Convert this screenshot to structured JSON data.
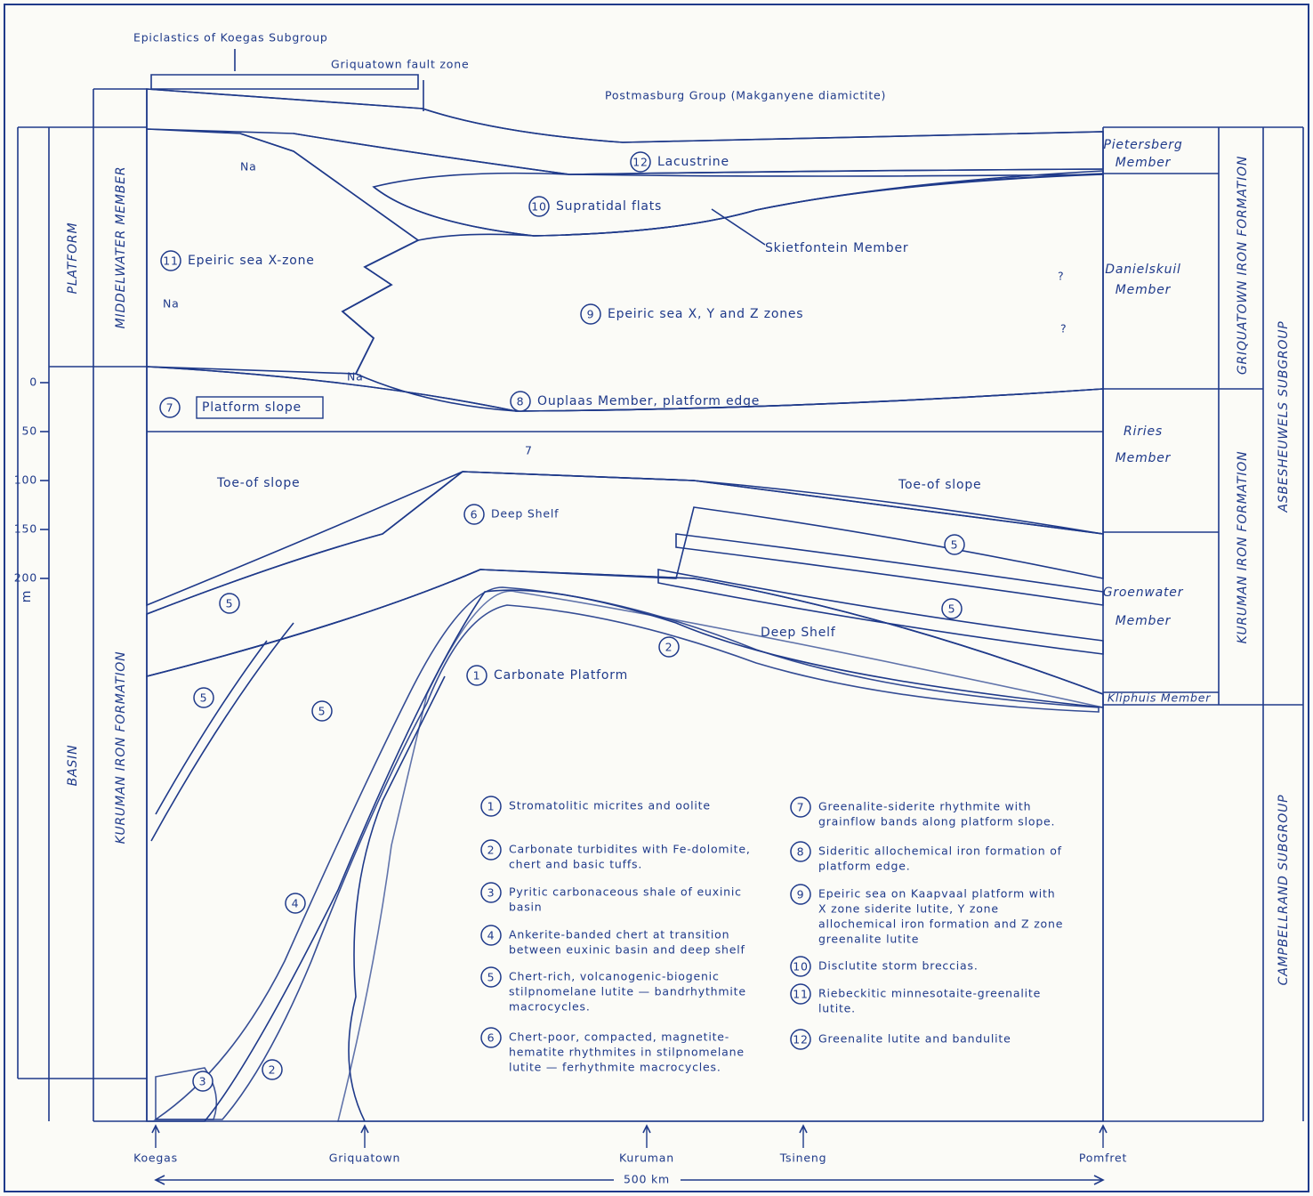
{
  "annotations": {
    "epiclastics": "Epiclastics of Koegas Subgroup",
    "fault_zone": "Griquatown fault zone",
    "postmasburg": "Postmasburg Group (Makganyene diamictite)"
  },
  "left_column": {
    "platform": "PLATFORM",
    "basin": "BASIN",
    "upper_unit": "MIDDELWATER MEMBER",
    "lower_unit": "KURUMAN IRON FORMATION"
  },
  "scale": {
    "ticks": [
      0,
      50,
      100,
      150,
      200
    ],
    "unit": "m"
  },
  "right_column": {
    "members": [
      [
        "Pietersberg",
        "Member"
      ],
      [
        "Danielskuil",
        "Member"
      ],
      [
        "Riries",
        "Member"
      ],
      [
        "Groenwater",
        "Member"
      ],
      [
        "Kliphuis Member"
      ]
    ],
    "formations": [
      "GRIQUATOWN IRON FORMATION",
      "KURUMAN IRON FORMATION"
    ],
    "subgroups": [
      "ASBESHEUWELS SUBGROUP",
      "CAMPBELLRAND SUBGROUP"
    ]
  },
  "zones": [
    {
      "number": "12",
      "label": "Lacustrine"
    },
    {
      "number": "10",
      "label": "Supratidal flats"
    },
    {
      "number": "11",
      "label": "Epeiric sea X-zone"
    },
    {
      "number": "9",
      "label": "Epeiric sea X, Y and Z zones"
    },
    {
      "number": "8",
      "label": "Ouplaas Member, platform edge"
    },
    {
      "number": "7",
      "label": "Platform slope"
    },
    {
      "number": "6",
      "label": "Deep Shelf"
    },
    {
      "number": "1",
      "label": "Carbonate Platform"
    },
    {
      "number": "5"
    },
    {
      "number": "5"
    },
    {
      "number": "5"
    },
    {
      "number": "5"
    },
    {
      "number": "5"
    },
    {
      "number": "2"
    },
    {
      "number": "4"
    },
    {
      "number": "3"
    },
    {
      "number": "2"
    }
  ],
  "labels": [
    "Skietfontein Member",
    "Toe-of slope",
    "Toe-of slope",
    "Deep Shelf",
    "Na",
    "Na",
    "Na",
    "?",
    "?",
    "7"
  ],
  "legend": [
    {
      "number": "1",
      "lines": [
        "Stromatolitic micrites and oolite"
      ]
    },
    {
      "number": "2",
      "lines": [
        "Carbonate turbidites with Fe-dolomite,",
        "chert and basic tuffs."
      ]
    },
    {
      "number": "3",
      "lines": [
        "Pyritic carbonaceous shale of euxinic",
        "basin"
      ]
    },
    {
      "number": "4",
      "lines": [
        "Ankerite-banded chert at transition",
        "between euxinic basin and deep shelf"
      ]
    },
    {
      "number": "5",
      "lines": [
        "Chert-rich, volcanogenic-biogenic",
        "stilpnomelane lutite — bandrhythmite",
        "macrocycles."
      ]
    },
    {
      "number": "6",
      "lines": [
        "Chert-poor, compacted, magnetite-",
        "hematite rhythmites in stilpnomelane",
        "lutite — ferhythmite macrocycles."
      ]
    },
    {
      "number": "7",
      "lines": [
        "Greenalite-siderite rhythmite with",
        "grainflow bands along platform slope."
      ]
    },
    {
      "number": "8",
      "lines": [
        "Sideritic allochemical iron formation of",
        "platform edge."
      ]
    },
    {
      "number": "9",
      "lines": [
        "Epeiric sea on Kaapvaal platform with",
        "X zone siderite lutite, Y zone",
        "allochemical iron formation and Z zone",
        "greenalite lutite"
      ]
    },
    {
      "number": "10",
      "lines": [
        "Disclutite storm breccias."
      ]
    },
    {
      "number": "11",
      "lines": [
        "Riebeckitic minnesotaite-greenalite",
        "lutite."
      ]
    },
    {
      "number": "12",
      "lines": [
        "Greenalite lutite and bandulite"
      ]
    }
  ],
  "localities": [
    "Koegas",
    "Griquatown",
    "Kuruman",
    "Tsineng",
    "Pomfret"
  ],
  "distance": "500 km"
}
